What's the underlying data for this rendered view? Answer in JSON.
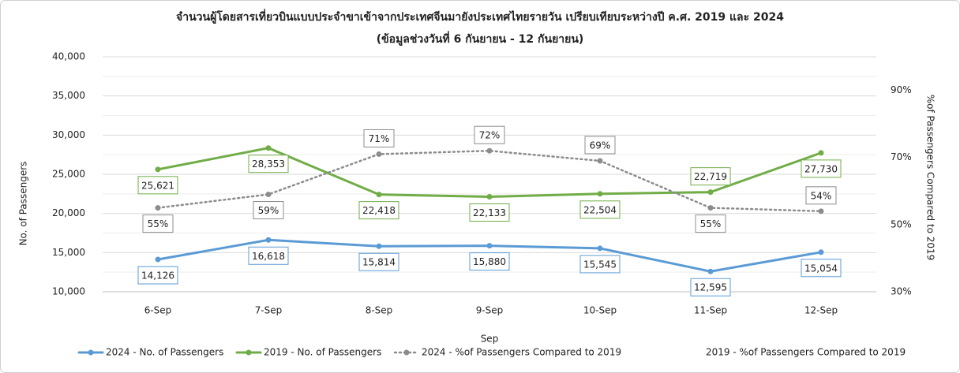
{
  "chart_data": {
    "type": "line",
    "title": "จำนวนผู้โดยสารเที่ยวบินแบบประจำขาเข้าจากประเทศจีนมายังประเทศไทยรายวัน เปรียบเทียบระหว่างปี ค.ศ. 2019 และ 2024",
    "subtitle": "(ข้อมูลช่วงวันที่ 6 กันยายน - 12 กันยายน)",
    "x_label": "Sep",
    "y_label": "No. of Passengers",
    "y2_label": "%of Passengers Compared to 2019",
    "categories": [
      "6-Sep",
      "7-Sep",
      "8-Sep",
      "9-Sep",
      "10-Sep",
      "11-Sep",
      "12-Sep"
    ],
    "ylim": [
      10000,
      40000
    ],
    "yticks": [
      {
        "value": 10000,
        "label": "10,000"
      },
      {
        "value": 15000,
        "label": "15,000"
      },
      {
        "value": 20000,
        "label": "20,000"
      },
      {
        "value": 25000,
        "label": "25,000"
      },
      {
        "value": 30000,
        "label": "30,000"
      },
      {
        "value": 35000,
        "label": "35,000"
      },
      {
        "value": 40000,
        "label": "40,000"
      }
    ],
    "y2lim": [
      30,
      100
    ],
    "y2ticks": [
      {
        "value": 30,
        "label": "30%"
      },
      {
        "value": 50,
        "label": "50%"
      },
      {
        "value": 70,
        "label": "70%"
      },
      {
        "value": 90,
        "label": "90%"
      }
    ],
    "grid": true,
    "legend": "bottom",
    "series": [
      {
        "name": "2024 - No. of Passengers",
        "color": "#5b9bd5",
        "style": "solid",
        "values": [
          14126,
          16618,
          15814,
          15880,
          15545,
          12595,
          15054
        ],
        "value_labels": [
          "14,126",
          "16,618",
          "15,814",
          "15,880",
          "15,545",
          "12,595",
          "15,054"
        ]
      },
      {
        "name": "2019 - No. of Passengers",
        "color": "#70ad47",
        "style": "solid",
        "values": [
          25621,
          28353,
          22418,
          22133,
          22504,
          22719,
          27730
        ],
        "value_labels": [
          "25,621",
          "28,353",
          "22,418",
          "22,133",
          "22,504",
          "22,719",
          "27,730"
        ]
      },
      {
        "name": "2024 - %of Passengers Compared to 2019",
        "color": "#8c8c8c",
        "style": "dotted",
        "axis": "y2",
        "values": [
          55,
          59,
          71,
          72,
          69,
          55,
          54
        ],
        "value_labels": [
          "55%",
          "59%",
          "71%",
          "72%",
          "69%",
          "55%",
          "54%"
        ]
      },
      {
        "name": "2019 - %of Passengers Compared to 2019",
        "axis": "y2",
        "values": [
          null,
          null,
          null,
          null,
          null,
          null,
          null
        ]
      }
    ]
  }
}
